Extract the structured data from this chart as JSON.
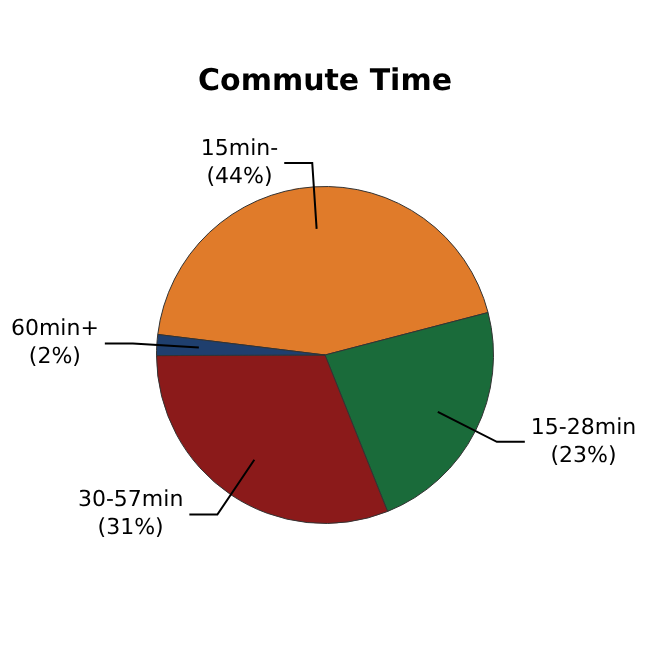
{
  "chart_data": {
    "type": "pie",
    "title": "Commute Time",
    "categories": [
      "15min-",
      "15-28min",
      "30-57min",
      "60min+"
    ],
    "values": [
      44,
      23,
      31,
      2
    ],
    "colors": [
      "#e07b2a",
      "#1a6b3a",
      "#8b1a1a",
      "#1f3f6e"
    ],
    "value_labels": [
      "(44%)",
      "(23%)",
      "(31%)",
      "(2%)"
    ],
    "legend": false
  }
}
